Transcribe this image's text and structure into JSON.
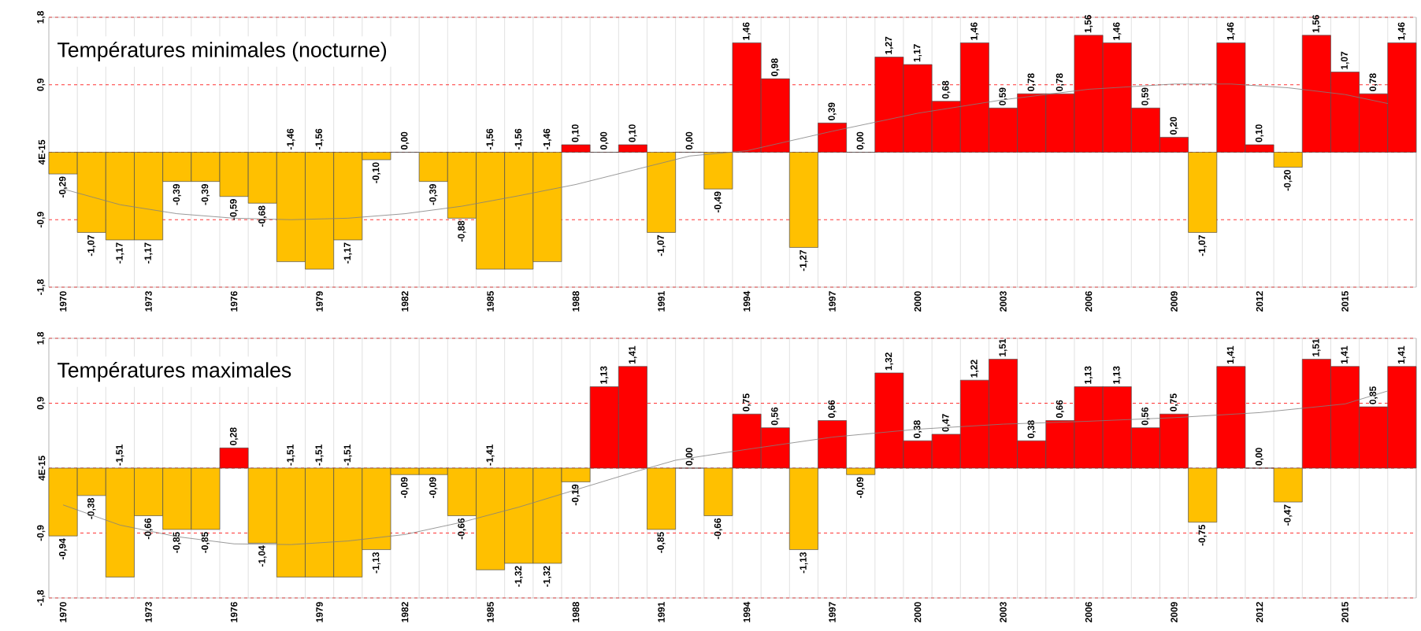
{
  "chart_data": [
    {
      "type": "bar",
      "title": "Températures minimales (nocturne)",
      "x": [
        1970,
        1971,
        1972,
        1973,
        1974,
        1975,
        1976,
        1977,
        1978,
        1979,
        1980,
        1981,
        1982,
        1983,
        1984,
        1985,
        1986,
        1987,
        1988,
        1989,
        1990,
        1991,
        1992,
        1993,
        1994,
        1995,
        1996,
        1997,
        1998,
        1999,
        2000,
        2001,
        2002,
        2003,
        2004,
        2005,
        2006,
        2007,
        2008,
        2009,
        2010,
        2011,
        2012,
        2013,
        2014,
        2015,
        2016,
        2017
      ],
      "xlim": [
        1969.5,
        2017.5
      ],
      "xticks": [
        1970,
        1973,
        1976,
        1979,
        1982,
        1985,
        1988,
        1991,
        1994,
        1997,
        2000,
        2003,
        2006,
        2009,
        2012,
        2015
      ],
      "ylim": [
        -1.8,
        1.8
      ],
      "yticks": [
        {
          "value": -1.8,
          "label": "-1,8"
        },
        {
          "value": -0.9,
          "label": "-0,9"
        },
        {
          "value": 0,
          "label": "4E-15"
        },
        {
          "value": 0.9,
          "label": "0,9"
        },
        {
          "value": 1.8,
          "label": "1,8"
        }
      ],
      "grid": true,
      "series": [
        {
          "values": [
            -0.29,
            -1.07,
            -1.17,
            -1.17,
            -0.39,
            -0.39,
            -0.59,
            -0.68,
            -1.46,
            -1.56,
            -1.17,
            -0.1,
            0.0,
            -0.39,
            -0.88,
            -1.56,
            -1.56,
            -1.46,
            0.1,
            0.0,
            0.1,
            -1.07,
            0.0,
            -0.49,
            1.46,
            0.98,
            -1.27,
            0.39,
            0.0,
            1.27,
            1.17,
            0.68,
            1.46,
            0.59,
            0.78,
            0.78,
            1.56,
            1.46,
            0.59,
            0.2,
            -1.07,
            1.46,
            0.1,
            -0.2,
            1.56,
            1.07,
            0.78,
            1.46
          ],
          "colors": [
            "#ffc000",
            "#ffc000",
            "#ffc000",
            "#ffc000",
            "#ffc000",
            "#ffc000",
            "#ffc000",
            "#ffc000",
            "#ffc000",
            "#ffc000",
            "#ffc000",
            "#ffc000",
            "#ff0000",
            "#ffc000",
            "#ffc000",
            "#ffc000",
            "#ffc000",
            "#ffc000",
            "#ff0000",
            "#ff0000",
            "#ff0000",
            "#ffc000",
            "#ff0000",
            "#ffc000",
            "#ff0000",
            "#ff0000",
            "#ffc000",
            "#ff0000",
            "#ff0000",
            "#ff0000",
            "#ff0000",
            "#ff0000",
            "#ff0000",
            "#ff0000",
            "#ff0000",
            "#ff0000",
            "#ff0000",
            "#ff0000",
            "#ff0000",
            "#ff0000",
            "#ffc000",
            "#ff0000",
            "#ff0000",
            "#ffc000",
            "#ff0000",
            "#ff0000",
            "#ff0000",
            "#ff0000"
          ],
          "value_labels": [
            "-0,29",
            "-1,07",
            "-1,17",
            "-1,17",
            "-0,39",
            "-0,39",
            "-0,59",
            "-0,68",
            "-1,46",
            "-1,56",
            "-1,17",
            "-0,10",
            "0,00",
            "-0,39",
            "-0,88",
            "-1,56",
            "-1,56",
            "-1,46",
            "0,10",
            "0,00",
            "0,10",
            "-1,07",
            "0,00",
            "-0,49",
            "1,46",
            "0,98",
            "-1,27",
            "0,39",
            "0,00",
            "1,27",
            "1,17",
            "0,68",
            "1,46",
            "0,59",
            "0,78",
            "0,78",
            "1,56",
            "1,46",
            "0,59",
            "0,20",
            "-1,07",
            "1,46",
            "0,10",
            "-0,20",
            "1,56",
            "1,07",
            "0,78",
            "1,46"
          ]
        },
        {
          "type": "line",
          "color": "#808080",
          "x": [
            1970,
            1972,
            1974,
            1976,
            1978,
            1980,
            1982,
            1984,
            1986,
            1988,
            1990,
            1992,
            1994,
            1997,
            2000,
            2003,
            2006,
            2009,
            2011,
            2013,
            2015,
            2016.5
          ],
          "values": [
            -0.49,
            -0.7,
            -0.82,
            -0.88,
            -0.9,
            -0.88,
            -0.82,
            -0.72,
            -0.58,
            -0.43,
            -0.24,
            -0.05,
            0.02,
            0.28,
            0.52,
            0.7,
            0.84,
            0.91,
            0.91,
            0.86,
            0.77,
            0.65
          ]
        }
      ]
    },
    {
      "type": "bar",
      "title": "Températures maximales",
      "x": [
        1970,
        1971,
        1972,
        1973,
        1974,
        1975,
        1976,
        1977,
        1978,
        1979,
        1980,
        1981,
        1982,
        1983,
        1984,
        1985,
        1986,
        1987,
        1988,
        1989,
        1990,
        1991,
        1992,
        1993,
        1994,
        1995,
        1996,
        1997,
        1998,
        1999,
        2000,
        2001,
        2002,
        2003,
        2004,
        2005,
        2006,
        2007,
        2008,
        2009,
        2010,
        2011,
        2012,
        2013,
        2014,
        2015,
        2016,
        2017
      ],
      "xlim": [
        1969.5,
        2017.5
      ],
      "xticks": [
        1970,
        1973,
        1976,
        1979,
        1982,
        1985,
        1988,
        1991,
        1994,
        1997,
        2000,
        2003,
        2006,
        2009,
        2012,
        2015
      ],
      "ylim": [
        -1.8,
        1.8
      ],
      "yticks": [
        {
          "value": -1.8,
          "label": "-1,8"
        },
        {
          "value": -0.9,
          "label": "-0,9"
        },
        {
          "value": 0,
          "label": "4E-15"
        },
        {
          "value": 0.9,
          "label": "0,9"
        },
        {
          "value": 1.8,
          "label": "1,8"
        }
      ],
      "grid": true,
      "series": [
        {
          "values": [
            -0.94,
            -0.38,
            -1.51,
            -0.66,
            -0.85,
            -0.85,
            0.28,
            -1.04,
            -1.51,
            -1.51,
            -1.51,
            -1.13,
            -0.09,
            -0.09,
            -0.66,
            -1.41,
            -1.32,
            -1.32,
            -0.19,
            1.13,
            1.41,
            -0.85,
            0.0,
            -0.66,
            0.75,
            0.56,
            -1.13,
            0.66,
            -0.09,
            1.32,
            0.38,
            0.47,
            1.22,
            1.51,
            0.38,
            0.66,
            1.13,
            1.13,
            0.56,
            0.75,
            -0.75,
            1.41,
            0.0,
            -0.47,
            1.51,
            1.41,
            0.85,
            1.41
          ],
          "colors": [
            "#ffc000",
            "#ffc000",
            "#ffc000",
            "#ffc000",
            "#ffc000",
            "#ffc000",
            "#ff0000",
            "#ffc000",
            "#ffc000",
            "#ffc000",
            "#ffc000",
            "#ffc000",
            "#ffc000",
            "#ffc000",
            "#ffc000",
            "#ffc000",
            "#ffc000",
            "#ffc000",
            "#ffc000",
            "#ff0000",
            "#ff0000",
            "#ffc000",
            "#ff0000",
            "#ffc000",
            "#ff0000",
            "#ff0000",
            "#ffc000",
            "#ff0000",
            "#ffc000",
            "#ff0000",
            "#ff0000",
            "#ff0000",
            "#ff0000",
            "#ff0000",
            "#ff0000",
            "#ff0000",
            "#ff0000",
            "#ff0000",
            "#ff0000",
            "#ff0000",
            "#ffc000",
            "#ff0000",
            "#ff0000",
            "#ffc000",
            "#ff0000",
            "#ff0000",
            "#ff0000",
            "#ff0000"
          ],
          "value_labels": [
            "-0,94",
            "-0,38",
            "-1,51",
            "-0,66",
            "-0,85",
            "-0,85",
            "0,28",
            "-1,04",
            "-1,51",
            "-1,51",
            "-1,51",
            "-1,13",
            "-0,09",
            "-0,09",
            "-0,66",
            "-1,41",
            "-1,32",
            "-1,32",
            "-0,19",
            "1,13",
            "1,41",
            "-0,85",
            "0,00",
            "-0,66",
            "0,75",
            "0,56",
            "-1,13",
            "0,66",
            "-0,09",
            "1,32",
            "0,38",
            "0,47",
            "1,22",
            "1,51",
            "0,38",
            "0,66",
            "1,13",
            "1,13",
            "0,56",
            "0,75",
            "-0,75",
            "1,41",
            "0,00",
            "-0,47",
            "1,51",
            "1,41",
            "0,85",
            "1,41"
          ]
        },
        {
          "type": "line",
          "color": "#808080",
          "x": [
            1970,
            1972,
            1974,
            1976,
            1978,
            1980,
            1982,
            1984,
            1986,
            1988,
            1990,
            1991.5,
            1994,
            1997,
            2000,
            2003,
            2006,
            2009,
            2012,
            2015,
            2016.5
          ],
          "values": [
            -0.51,
            -0.79,
            -0.95,
            -1.05,
            -1.06,
            -1.01,
            -0.92,
            -0.75,
            -0.54,
            -0.3,
            -0.06,
            0.11,
            0.26,
            0.43,
            0.54,
            0.61,
            0.65,
            0.7,
            0.77,
            0.89,
            1.07
          ]
        }
      ]
    }
  ]
}
